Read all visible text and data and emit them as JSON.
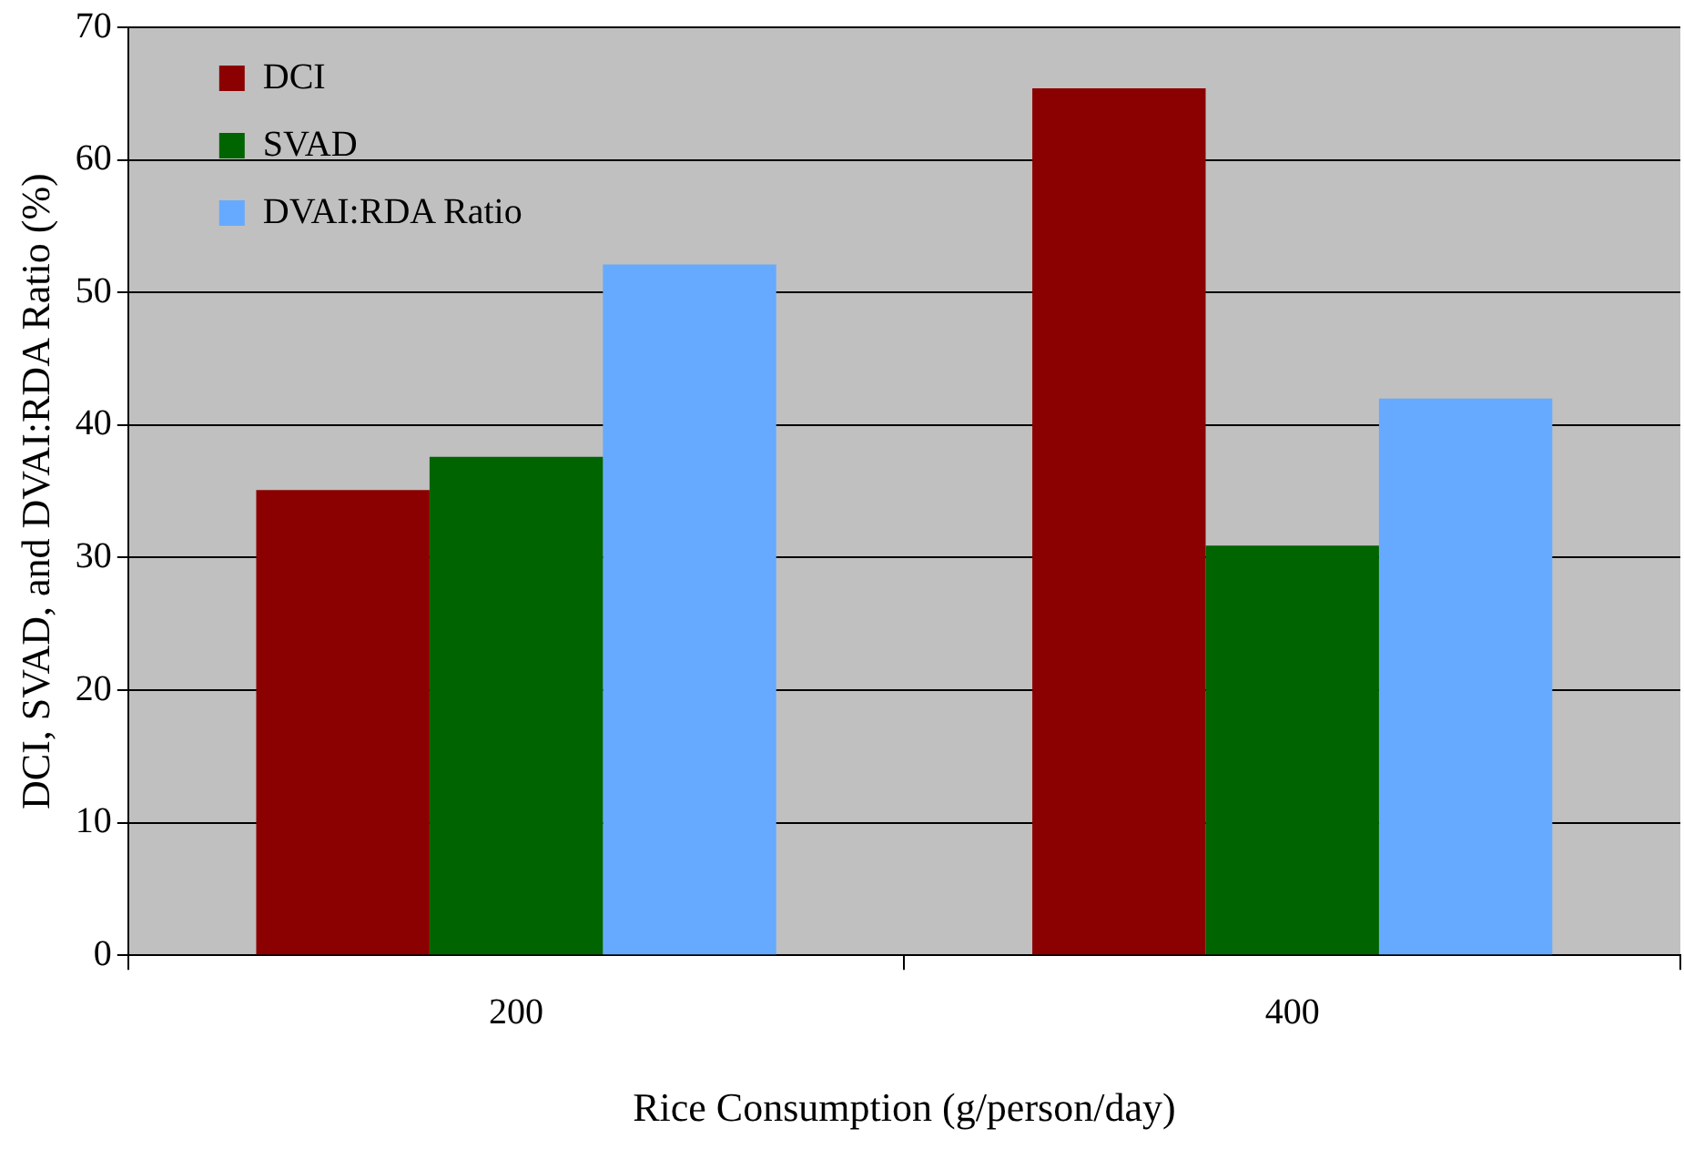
{
  "chart_data": {
    "type": "bar",
    "xlabel": "Rice Consumption (g/person/day)",
    "ylabel": "DCI, SVAD, and DVAI:RDA Ratio (%)",
    "categories": [
      "200",
      "400"
    ],
    "series": [
      {
        "name": "DCI",
        "color": "#8b0000",
        "values": [
          35.1,
          65.4
        ]
      },
      {
        "name": "SVAD",
        "color": "#006400",
        "values": [
          37.6,
          30.9
        ]
      },
      {
        "name": "DVAI:RDA Ratio",
        "color": "#66aaff",
        "values": [
          52.1,
          42.0
        ]
      }
    ],
    "ylim": [
      0,
      70
    ],
    "yticks": [
      0,
      10,
      20,
      30,
      40,
      50,
      60,
      70
    ],
    "grid": "y",
    "legend": "top left"
  }
}
